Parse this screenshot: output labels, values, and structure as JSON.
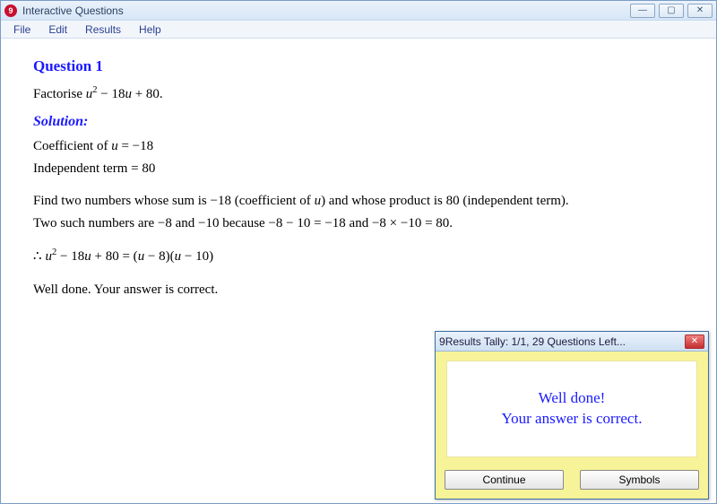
{
  "window": {
    "title": "Interactive Questions",
    "icon_badge": "9",
    "min_symbol": "—",
    "max_symbol": "▢",
    "close_symbol": "✕"
  },
  "menubar": {
    "items": [
      "File",
      "Edit",
      "Results",
      "Help"
    ]
  },
  "content": {
    "question_title": "Question 1",
    "prompt_prefix": "Factorise ",
    "prompt_expr_html": "<span class='var'>u</span><sup>2</sup> − 18<span class='var'>u</span> + 80.",
    "solution_label": "Solution:",
    "line_coeff_html": "Coefficient of <span class='var'>u</span> = −18",
    "line_indep": "Independent term = 80",
    "explain1_html": "Find two numbers whose sum is −18 (coefficient of <span class='var'>u</span>) and whose product is 80 (independent term).",
    "explain2_html": "Two such numbers are −8 and −10 because −8 − 10 = −18 and −8 × −10 = 80.",
    "result_html": "<span class='var'>u</span><sup>2</sup> − 18<span class='var'>u</span> + 80 = (<span class='var'>u</span> − 8)(<span class='var'>u</span> − 10)",
    "feedback": "Well done.  Your answer is correct."
  },
  "dialog": {
    "title": "Results Tally:  1/1, 29 Questions Left...",
    "icon_badge": "9",
    "close_symbol": "✕",
    "msg_line1": "Well done!",
    "msg_line2": "Your answer is correct.",
    "btn_continue": "Continue",
    "btn_symbols": "Symbols"
  },
  "colors": {
    "accent_blue": "#1a1aff",
    "dialog_bg": "#f7f398",
    "titlebar_grad_top": "#eaf2fb",
    "titlebar_grad_bottom": "#d7e6f7"
  }
}
